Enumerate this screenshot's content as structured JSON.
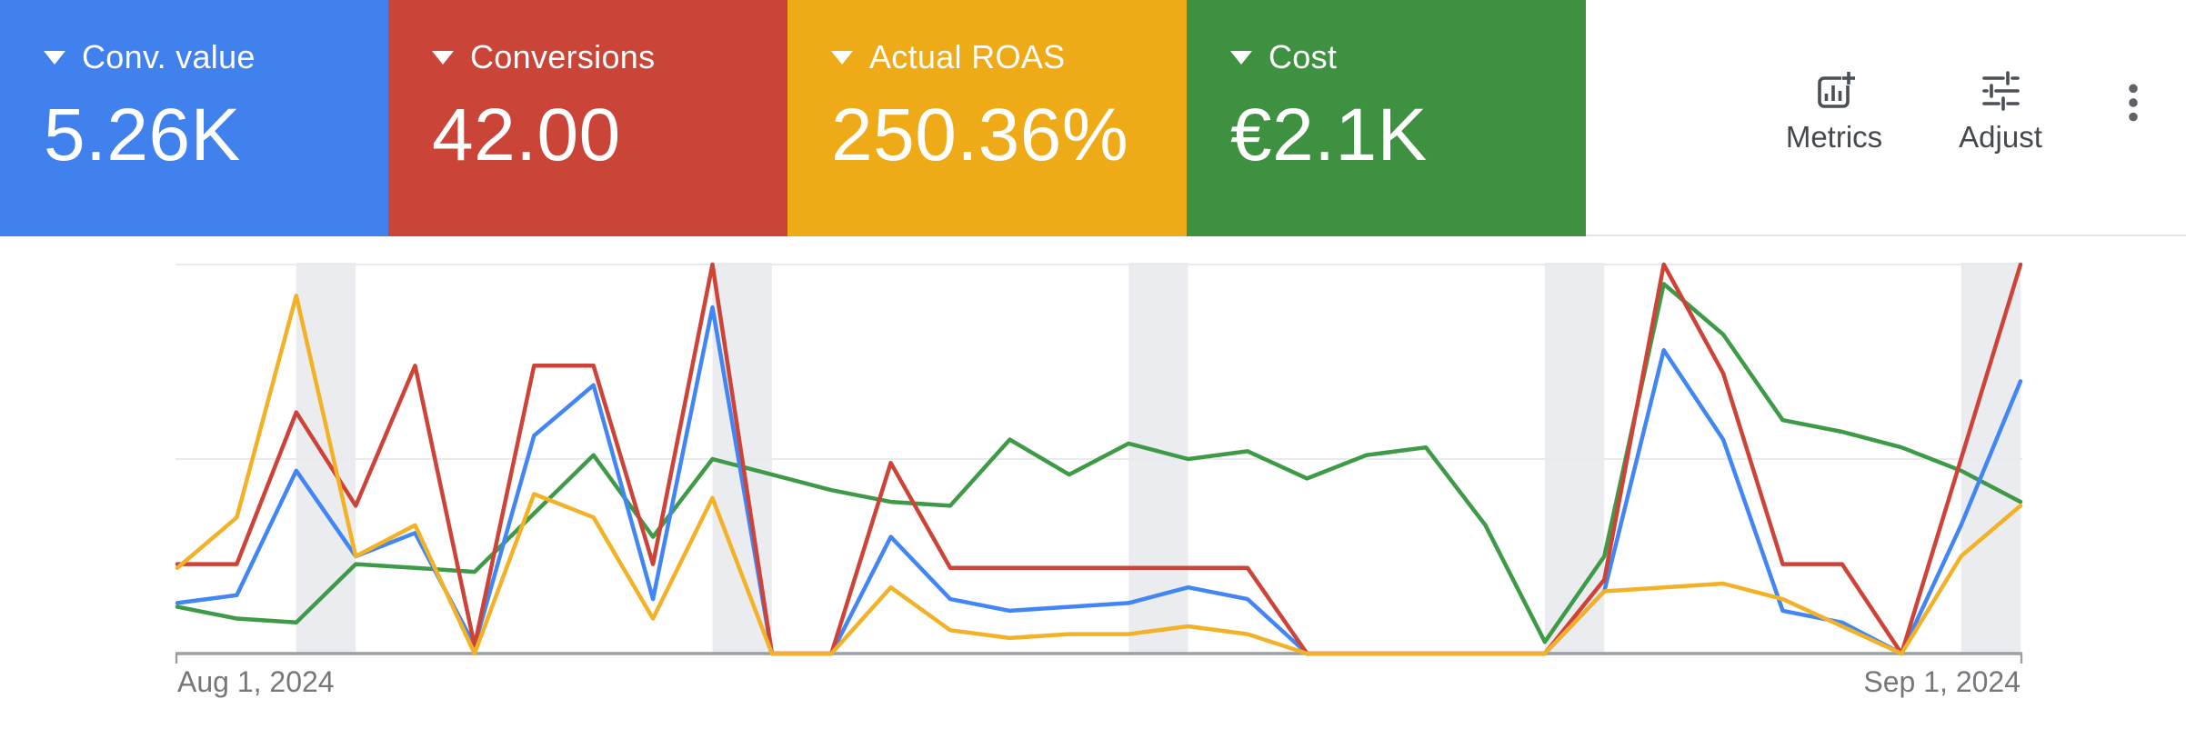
{
  "header": {
    "cards": [
      {
        "label": "Conv. value",
        "value": "5.26K",
        "color": "#4181EE"
      },
      {
        "label": "Conversions",
        "value": "42.00",
        "color": "#CB4438"
      },
      {
        "label": "Actual ROAS",
        "value": "250.36%",
        "color": "#EFAA17"
      },
      {
        "label": "Cost",
        "value": "€2.1K",
        "color": "#3F9142"
      }
    ],
    "tools": {
      "metrics_label": "Metrics",
      "adjust_label": "Adjust",
      "icons": [
        "add-chart-icon",
        "tune-icon",
        "more-vert-icon"
      ]
    }
  },
  "chart_data": {
    "type": "line",
    "title": "",
    "xlabel": "",
    "ylabel": "",
    "x_axis": {
      "start_label": "Aug 1, 2024",
      "end_label": "Sep 1, 2024",
      "days": 32
    },
    "ylim": [
      0,
      100
    ],
    "grid": true,
    "legend_position": "header-scorecards",
    "weekend_bands_day_indices": [
      [
        2,
        3
      ],
      [
        9,
        10
      ],
      [
        16,
        17
      ],
      [
        23,
        24
      ],
      [
        30,
        31
      ]
    ],
    "series": [
      {
        "name": "Cost",
        "color": "#3F9A48",
        "values": [
          12,
          9,
          8,
          23,
          22,
          21,
          36,
          51,
          30,
          50,
          46,
          42,
          39,
          38,
          55,
          46,
          54,
          50,
          52,
          45,
          51,
          53,
          33,
          3,
          25,
          95,
          82,
          60,
          57,
          53,
          47,
          39
        ]
      },
      {
        "name": "Conv. value",
        "color": "#4285F4",
        "values": [
          13,
          15,
          47,
          25,
          31,
          2,
          56,
          69,
          14,
          89,
          0,
          0,
          30,
          14,
          11,
          12,
          13,
          17,
          14,
          0,
          0,
          0,
          0,
          0,
          16,
          78,
          55,
          11,
          8,
          0,
          33,
          70
        ]
      },
      {
        "name": "Conversions",
        "color": "#CD4337",
        "values": [
          23,
          23,
          62,
          38,
          74,
          2,
          74,
          74,
          23,
          100,
          0,
          0,
          49,
          22,
          22,
          22,
          22,
          22,
          22,
          0,
          0,
          0,
          0,
          0,
          19,
          100,
          72,
          23,
          23,
          0,
          50,
          100
        ]
      },
      {
        "name": "Actual ROAS",
        "color": "#F2B127",
        "values": [
          22,
          35,
          92,
          25,
          33,
          0,
          41,
          35,
          9,
          40,
          0,
          0,
          17,
          6,
          4,
          5,
          5,
          7,
          5,
          0,
          0,
          0,
          0,
          0,
          16,
          17,
          18,
          14,
          7,
          0,
          25,
          38
        ]
      }
    ],
    "colors": {
      "axis": "#9AA0A6",
      "gridline": "#E9EAEC",
      "weekend_band": "#EBECEF",
      "date_label": "#75787B"
    }
  }
}
